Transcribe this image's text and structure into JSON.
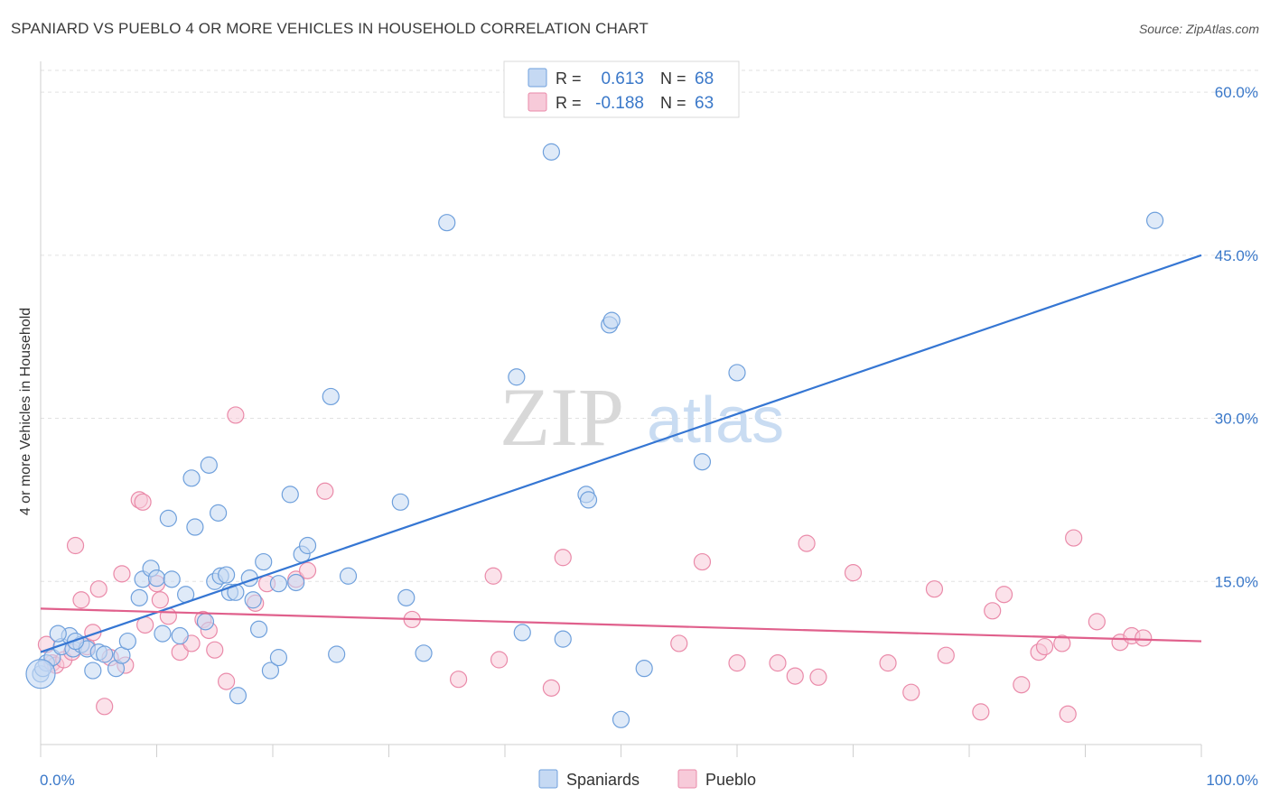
{
  "header": {
    "title": "SPANIARD VS PUEBLO 4 OR MORE VEHICLES IN HOUSEHOLD CORRELATION CHART",
    "source": "Source: ZipAtlas.com"
  },
  "watermark": {
    "zip": "ZIP",
    "atlas": "atlas"
  },
  "legend_top": {
    "r_label": "R =",
    "n_label": "N =",
    "rows": [
      {
        "r": "0.613",
        "n": "68"
      },
      {
        "r": "-0.188",
        "n": "63"
      }
    ]
  },
  "legend_bottom": {
    "items": [
      "Spaniards",
      "Pueblo"
    ]
  },
  "chart_data": {
    "type": "scatter",
    "title": "SPANIARD VS PUEBLO 4 OR MORE VEHICLES IN HOUSEHOLD CORRELATION CHART",
    "xlabel": "",
    "ylabel": "4 or more Vehicles in Household",
    "xlim": [
      0,
      100
    ],
    "ylim": [
      0,
      62
    ],
    "x_tick_labels": [
      "0.0%",
      "100.0%"
    ],
    "y_ticks": [
      15,
      30,
      45,
      60
    ],
    "y_tick_labels": [
      "15.0%",
      "30.0%",
      "45.0%",
      "60.0%"
    ],
    "grid": "horizontal dashed",
    "legend_placement": "top-center",
    "colors": {
      "spaniards": "#6fa0dc",
      "spaniards_fill": "#c5d9f3",
      "spaniards_line": "#3576d3",
      "pueblo": "#ea8aa9",
      "pueblo_fill": "#f7cad9",
      "pueblo_line": "#e0608c",
      "tick_text": "#3a78c9"
    },
    "series": [
      {
        "name": "Spaniards",
        "r": 0.613,
        "n": 68,
        "trend": {
          "x": [
            0,
            100
          ],
          "y": [
            8.5,
            45.0
          ]
        },
        "points": [
          [
            0,
            6.5
          ],
          [
            0.5,
            7.5
          ],
          [
            1,
            8
          ],
          [
            1.8,
            9
          ],
          [
            2.5,
            10
          ],
          [
            2.8,
            8.8
          ],
          [
            3.5,
            9.2
          ],
          [
            4,
            8.8
          ],
          [
            4.5,
            6.8
          ],
          [
            5,
            8.5
          ],
          [
            5.5,
            8.3
          ],
          [
            6.5,
            7.0
          ],
          [
            7,
            8.2
          ],
          [
            7.5,
            9.5
          ],
          [
            8.5,
            13.5
          ],
          [
            8.8,
            15.2
          ],
          [
            9.5,
            16.2
          ],
          [
            10,
            15.3
          ],
          [
            10.5,
            10.2
          ],
          [
            11,
            20.8
          ],
          [
            11.3,
            15.2
          ],
          [
            12,
            10
          ],
          [
            12.5,
            13.8
          ],
          [
            13,
            24.5
          ],
          [
            13.3,
            20.0
          ],
          [
            14.2,
            11.3
          ],
          [
            14.5,
            25.7
          ],
          [
            15,
            15.0
          ],
          [
            15.3,
            21.3
          ],
          [
            15.5,
            15.5
          ],
          [
            16,
            15.6
          ],
          [
            16.3,
            14.0
          ],
          [
            16.8,
            14.0
          ],
          [
            17,
            4.5
          ],
          [
            18,
            15.3
          ],
          [
            18.3,
            13.3
          ],
          [
            18.8,
            10.6
          ],
          [
            19.2,
            16.8
          ],
          [
            19.8,
            6.8
          ],
          [
            20.5,
            8.0
          ],
          [
            20.5,
            14.8
          ],
          [
            21.5,
            23.0
          ],
          [
            22,
            14.9
          ],
          [
            22.5,
            17.5
          ],
          [
            23,
            18.3
          ],
          [
            25,
            32.0
          ],
          [
            25.5,
            8.3
          ],
          [
            26.5,
            15.5
          ],
          [
            31,
            22.3
          ],
          [
            31.5,
            13.5
          ],
          [
            33,
            8.4
          ],
          [
            35,
            48.0
          ],
          [
            41,
            33.8
          ],
          [
            41.5,
            10.3
          ],
          [
            44,
            54.5
          ],
          [
            45,
            9.7
          ],
          [
            47,
            23.0
          ],
          [
            47.2,
            22.5
          ],
          [
            49,
            38.6
          ],
          [
            49.2,
            39.0
          ],
          [
            50,
            2.3
          ],
          [
            52,
            7.0
          ],
          [
            57,
            26.0
          ],
          [
            60,
            34.2
          ],
          [
            96,
            48.2
          ],
          [
            0.2,
            7.0
          ],
          [
            1.5,
            10.2
          ],
          [
            3,
            9.5
          ]
        ]
      },
      {
        "name": "Pueblo",
        "r": -0.188,
        "n": 63,
        "trend": {
          "x": [
            0,
            100
          ],
          "y": [
            12.5,
            9.5
          ]
        },
        "points": [
          [
            0.5,
            9.2
          ],
          [
            1,
            7.5
          ],
          [
            1.3,
            7.3
          ],
          [
            2,
            7.8
          ],
          [
            2.7,
            8.5
          ],
          [
            3,
            18.3
          ],
          [
            3.5,
            13.3
          ],
          [
            4,
            9.0
          ],
          [
            4.5,
            10.3
          ],
          [
            5,
            14.3
          ],
          [
            5.5,
            3.5
          ],
          [
            6,
            8.0
          ],
          [
            7,
            15.7
          ],
          [
            7.3,
            7.3
          ],
          [
            8.5,
            22.5
          ],
          [
            8.8,
            22.3
          ],
          [
            9,
            11.0
          ],
          [
            10,
            14.8
          ],
          [
            10.3,
            13.3
          ],
          [
            11,
            11.8
          ],
          [
            12,
            8.5
          ],
          [
            13,
            9.3
          ],
          [
            14,
            11.5
          ],
          [
            14.5,
            10.5
          ],
          [
            15,
            8.7
          ],
          [
            16,
            5.8
          ],
          [
            16.8,
            30.3
          ],
          [
            18.5,
            13.0
          ],
          [
            19.5,
            14.8
          ],
          [
            22,
            15.2
          ],
          [
            23,
            16.0
          ],
          [
            24.5,
            23.3
          ],
          [
            32,
            11.5
          ],
          [
            36,
            6.0
          ],
          [
            39,
            15.5
          ],
          [
            39.5,
            7.8
          ],
          [
            44,
            5.2
          ],
          [
            45,
            17.2
          ],
          [
            55,
            9.3
          ],
          [
            57,
            16.8
          ],
          [
            60,
            7.5
          ],
          [
            63.5,
            7.5
          ],
          [
            65,
            6.3
          ],
          [
            66,
            18.5
          ],
          [
            67,
            6.2
          ],
          [
            70,
            15.8
          ],
          [
            73,
            7.5
          ],
          [
            75,
            4.8
          ],
          [
            77,
            14.3
          ],
          [
            78,
            8.2
          ],
          [
            81,
            3.0
          ],
          [
            82,
            12.3
          ],
          [
            83,
            13.8
          ],
          [
            84.5,
            5.5
          ],
          [
            86,
            8.5
          ],
          [
            86.5,
            9.0
          ],
          [
            88,
            9.3
          ],
          [
            89,
            19.0
          ],
          [
            91,
            11.3
          ],
          [
            93,
            9.4
          ],
          [
            94,
            10.0
          ],
          [
            95,
            9.8
          ],
          [
            88.5,
            2.8
          ]
        ]
      }
    ]
  }
}
